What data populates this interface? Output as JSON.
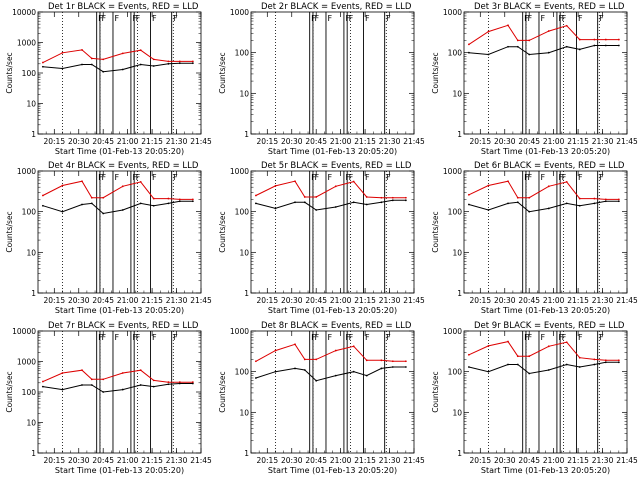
{
  "chart_data": {
    "type": "line",
    "layout": "3x3 grid",
    "shared": {
      "x_tick_labels": [
        "20:15",
        "20:30",
        "20:45",
        "21:00",
        "21:15",
        "21:30",
        "21:45"
      ],
      "x_ticks_minutes_from_start": [
        10,
        25,
        40,
        55,
        70,
        85,
        100
      ],
      "x_range_minutes": [
        0,
        100
      ],
      "xlabel": "Start Time (01-Feb-13 20:05:20)",
      "ylabel": "Counts/sec",
      "y_scale": "log",
      "legend": {
        "black": "Events",
        "red": "LLD"
      },
      "flag_label": "F",
      "flag_lines_minutes": [
        36,
        38,
        46,
        57,
        59,
        69,
        82
      ],
      "dotted_lines_minutes": [
        15,
        38,
        61,
        83
      ],
      "x_time_axis": [
        3,
        15,
        27,
        33,
        40,
        52,
        63,
        71,
        80,
        87,
        95
      ]
    },
    "panels": [
      {
        "title": "Det 1r BLACK = Events, RED = LLD",
        "y_tick_labels": [
          "1",
          "10",
          "100",
          "1000",
          "10000"
        ],
        "ylim": [
          1,
          10000
        ],
        "series": [
          {
            "name": "LLD",
            "color": "#dd0000",
            "values": [
              220,
              460,
              570,
              300,
              280,
              440,
              560,
              280,
              240,
              240,
              240
            ]
          },
          {
            "name": "Events",
            "color": "#000000",
            "values": [
              160,
              140,
              190,
              190,
              110,
              130,
              190,
              170,
              200,
              210,
              210
            ]
          }
        ]
      },
      {
        "title": "Det 2r BLACK = Events, RED = LLD",
        "y_tick_labels": [
          "1",
          "10",
          "100",
          "1000"
        ],
        "ylim": [
          1,
          1000
        ],
        "series": []
      },
      {
        "title": "Det 3r BLACK = Events, RED = LLD",
        "y_tick_labels": [
          "1",
          "10",
          "100",
          "1000"
        ],
        "ylim": [
          1,
          1000
        ],
        "series": [
          {
            "name": "LLD",
            "color": "#dd0000",
            "values": [
              160,
              330,
              470,
              200,
              200,
              340,
              460,
              210,
              210,
              210,
              210
            ]
          },
          {
            "name": "Events",
            "color": "#000000",
            "values": [
              100,
              90,
              140,
              140,
              90,
              100,
              140,
              120,
              150,
              150,
              150
            ]
          }
        ]
      },
      {
        "title": "Det 4r BLACK = Events, RED = LLD",
        "y_tick_labels": [
          "1",
          "10",
          "100",
          "1000"
        ],
        "ylim": [
          1,
          1000
        ],
        "series": [
          {
            "name": "LLD",
            "color": "#dd0000",
            "values": [
              250,
              440,
              560,
              220,
              220,
              420,
              540,
              210,
              210,
              200,
              200
            ]
          },
          {
            "name": "Events",
            "color": "#000000",
            "values": [
              140,
              100,
              150,
              160,
              90,
              110,
              160,
              140,
              160,
              180,
              180
            ]
          }
        ]
      },
      {
        "title": "Det 5r BLACK = Events, RED = LLD",
        "y_tick_labels": [
          "1",
          "10",
          "100",
          "1000"
        ],
        "ylim": [
          1,
          1000
        ],
        "series": [
          {
            "name": "LLD",
            "color": "#dd0000",
            "values": [
              250,
              430,
              560,
              230,
              230,
              420,
              550,
              230,
              220,
              220,
              220
            ]
          },
          {
            "name": "Events",
            "color": "#000000",
            "values": [
              160,
              120,
              170,
              170,
              110,
              130,
              170,
              150,
              170,
              190,
              190
            ]
          }
        ]
      },
      {
        "title": "Det 6r BLACK = Events, RED = LLD",
        "y_tick_labels": [
          "1",
          "10",
          "100",
          "1000"
        ],
        "ylim": [
          1,
          1000
        ],
        "series": [
          {
            "name": "LLD",
            "color": "#dd0000",
            "values": [
              260,
              440,
              560,
              220,
              220,
              420,
              540,
              210,
              210,
              200,
              200
            ]
          },
          {
            "name": "Events",
            "color": "#000000",
            "values": [
              150,
              110,
              160,
              170,
              100,
              120,
              160,
              140,
              160,
              180,
              180
            ]
          }
        ]
      },
      {
        "title": "Det 7r BLACK = Events, RED = LLD",
        "y_tick_labels": [
          "1",
          "10",
          "100",
          "1000",
          "10000"
        ],
        "ylim": [
          1,
          10000
        ],
        "series": [
          {
            "name": "LLD",
            "color": "#dd0000",
            "values": [
              220,
              420,
              520,
              260,
              260,
              420,
              520,
              240,
              210,
              210,
              210
            ]
          },
          {
            "name": "Events",
            "color": "#000000",
            "values": [
              150,
              120,
              170,
              170,
              100,
              120,
              170,
              150,
              180,
              190,
              190
            ]
          }
        ]
      },
      {
        "title": "Det 8r BLACK = Events, RED = LLD",
        "y_tick_labels": [
          "1",
          "10",
          "100",
          "1000"
        ],
        "ylim": [
          1,
          1000
        ],
        "series": [
          {
            "name": "LLD",
            "color": "#dd0000",
            "values": [
              180,
              330,
              470,
              200,
              200,
              330,
              420,
              190,
              190,
              180,
              180
            ]
          },
          {
            "name": "Events",
            "color": "#000000",
            "values": [
              70,
              100,
              120,
              110,
              60,
              80,
              100,
              80,
              120,
              130,
              130
            ]
          }
        ]
      },
      {
        "title": "Det 9r BLACK = Events, RED = LLD",
        "y_tick_labels": [
          "1",
          "10",
          "100",
          "1000"
        ],
        "ylim": [
          1,
          1000
        ],
        "series": [
          {
            "name": "LLD",
            "color": "#dd0000",
            "values": [
              260,
              430,
              550,
              240,
              240,
              420,
              530,
              220,
              200,
              190,
              190
            ]
          },
          {
            "name": "Events",
            "color": "#000000",
            "values": [
              130,
              100,
              150,
              150,
              90,
              110,
              150,
              130,
              150,
              170,
              170
            ]
          }
        ]
      }
    ]
  }
}
